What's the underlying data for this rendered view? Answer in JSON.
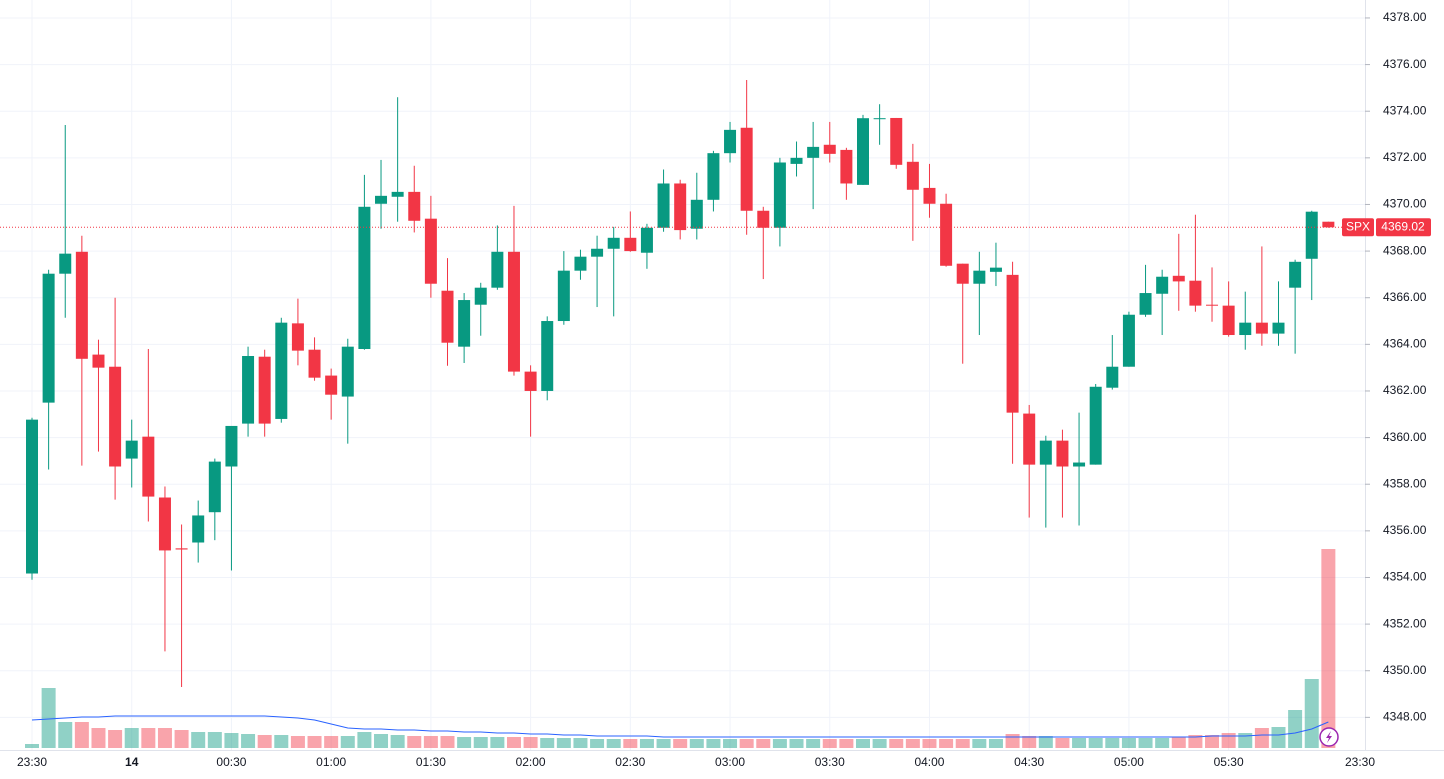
{
  "chart_data": {
    "type": "candlestick",
    "symbol": "SPX",
    "last_price": {
      "value": 4369.02,
      "label": "4369.02"
    },
    "categories": [
      "23:30",
      null,
      null,
      null,
      null,
      null,
      "14",
      null,
      null,
      null,
      null,
      null,
      "00:30",
      null,
      null,
      null,
      null,
      null,
      "01:00",
      null,
      null,
      null,
      null,
      null,
      "01:30",
      null,
      null,
      null,
      null,
      null,
      "02:00",
      null,
      null,
      null,
      null,
      null,
      "02:30",
      null,
      null,
      null,
      null,
      null,
      "03:00",
      null,
      null,
      null,
      null,
      null,
      "03:30",
      null,
      null,
      null,
      null,
      null,
      "04:00",
      null,
      null,
      null,
      null,
      null,
      "04:30",
      null,
      null,
      null,
      null,
      null,
      "05:00",
      null,
      null,
      null,
      null,
      null,
      "05:30",
      null,
      null,
      null,
      null,
      null,
      null
    ],
    "x_axis_end_label": "23:30",
    "open": [
      4354.17,
      4361.5,
      4367.03,
      4367.97,
      4363.56,
      4363.04,
      4359.1,
      4360.04,
      4357.43,
      4355.25,
      4355.5,
      4356.8,
      4358.76,
      4360.6,
      4363.47,
      4360.8,
      4364.9,
      4363.77,
      4362.66,
      4361.76,
      4363.8,
      4370.03,
      4370.33,
      4370.54,
      4369.39,
      4366.3,
      4363.9,
      4365.7,
      4366.43,
      4367.97,
      4362.83,
      4362.0,
      4365.0,
      4367.16,
      4367.76,
      4368.1,
      4368.57,
      4367.93,
      4369.0,
      4370.9,
      4368.96,
      4370.2,
      4372.2,
      4373.29,
      4369.73,
      4369.0,
      4371.74,
      4372.0,
      4372.56,
      4372.34,
      4370.84,
      4373.67,
      4373.71,
      4371.83,
      4370.71,
      4370.03,
      4367.46,
      4366.6,
      4367.11,
      4366.98,
      4361.03,
      4358.84,
      4359.87,
      4358.76,
      4358.84,
      4362.14,
      4363.04,
      4365.27,
      4366.17,
      4366.94,
      4366.73,
      4365.7,
      4365.66,
      4364.4,
      4364.93,
      4364.46,
      4366.43,
      4367.67,
      4369.26
    ],
    "high": [
      4360.85,
      4367.2,
      4373.41,
      4368.66,
      4364.2,
      4366.0,
      4360.77,
      4363.8,
      4357.9,
      4356.27,
      4357.3,
      4359.1,
      4360.5,
      4363.9,
      4363.77,
      4365.14,
      4365.96,
      4364.3,
      4362.96,
      4364.24,
      4371.27,
      4371.91,
      4374.6,
      4371.66,
      4370.37,
      4367.7,
      4366.2,
      4366.64,
      4369.1,
      4369.94,
      4363.1,
      4365.2,
      4368.0,
      4368.06,
      4368.66,
      4369.04,
      4369.7,
      4369.17,
      4371.5,
      4371.06,
      4371.36,
      4372.3,
      4373.54,
      4375.34,
      4369.9,
      4372.0,
      4372.7,
      4373.54,
      4373.54,
      4372.43,
      4373.84,
      4374.3,
      4373.71,
      4372.6,
      4371.74,
      4370.46,
      4367.46,
      4367.97,
      4368.36,
      4367.54,
      4361.4,
      4360.08,
      4360.34,
      4361.07,
      4362.3,
      4364.4,
      4365.4,
      4367.41,
      4367.2,
      4368.74,
      4369.56,
      4367.3,
      4366.7,
      4366.26,
      4368.2,
      4366.7,
      4367.63,
      4369.73,
      4369.26
    ],
    "low": [
      4353.9,
      4358.63,
      4365.14,
      4358.8,
      4359.4,
      4357.34,
      4357.86,
      4356.4,
      4350.83,
      4349.3,
      4354.64,
      4355.6,
      4354.3,
      4360.04,
      4360.04,
      4360.64,
      4363.1,
      4362.44,
      4360.77,
      4359.74,
      4363.77,
      4368.96,
      4369.26,
      4368.8,
      4366.0,
      4363.08,
      4363.2,
      4364.37,
      4366.34,
      4362.66,
      4360.04,
      4361.6,
      4364.84,
      4366.77,
      4365.6,
      4365.2,
      4367.97,
      4367.24,
      4368.83,
      4368.5,
      4368.5,
      4369.7,
      4371.8,
      4368.7,
      4366.8,
      4368.2,
      4371.2,
      4369.8,
      4371.8,
      4370.2,
      4370.84,
      4372.56,
      4371.53,
      4368.44,
      4369.43,
      4367.33,
      4363.17,
      4364.4,
      4366.5,
      4358.88,
      4356.57,
      4356.14,
      4356.57,
      4356.23,
      4358.84,
      4362.06,
      4363.04,
      4365.18,
      4364.4,
      4365.44,
      4365.4,
      4364.97,
      4364.33,
      4363.77,
      4363.94,
      4363.94,
      4363.6,
      4365.9,
      4369.0
    ],
    "close": [
      4360.77,
      4367.03,
      4367.89,
      4363.38,
      4363.0,
      4358.76,
      4359.87,
      4357.47,
      4355.16,
      4355.2,
      4356.66,
      4358.97,
      4360.5,
      4363.5,
      4360.6,
      4364.93,
      4363.73,
      4362.57,
      4361.84,
      4363.9,
      4369.9,
      4370.37,
      4370.54,
      4369.3,
      4366.6,
      4364.07,
      4365.9,
      4366.43,
      4367.97,
      4362.83,
      4362.0,
      4365.0,
      4367.16,
      4367.76,
      4368.1,
      4368.57,
      4368.0,
      4369.0,
      4370.9,
      4368.9,
      4370.2,
      4372.2,
      4373.2,
      4369.73,
      4369.0,
      4371.8,
      4372.0,
      4372.47,
      4372.17,
      4370.9,
      4373.7,
      4373.7,
      4371.7,
      4370.63,
      4370.03,
      4367.37,
      4366.6,
      4367.16,
      4367.29,
      4361.07,
      4358.84,
      4359.87,
      4358.76,
      4358.93,
      4362.18,
      4363.04,
      4365.27,
      4366.2,
      4366.9,
      4366.7,
      4365.66,
      4365.66,
      4364.4,
      4364.93,
      4364.46,
      4364.93,
      4367.54,
      4369.69,
      4369.02
    ],
    "volume": [
      4,
      60,
      26,
      26,
      20,
      18,
      20,
      20,
      20,
      18,
      16,
      16,
      15,
      14,
      13,
      13,
      12,
      12,
      12,
      12,
      16,
      14,
      13,
      12,
      12,
      12,
      11,
      11,
      11,
      11,
      11,
      10,
      10,
      10,
      9,
      9,
      9,
      9,
      9,
      9,
      9,
      9,
      9,
      9,
      9,
      9,
      9,
      9,
      9,
      9,
      9,
      9,
      9,
      9,
      9,
      9,
      9,
      9,
      9,
      14,
      12,
      12,
      10,
      10,
      10,
      10,
      10,
      10,
      10,
      11,
      13,
      13,
      15,
      15,
      20,
      21,
      38,
      69,
      199
    ],
    "volume_ma": [
      28,
      29,
      30,
      31,
      31,
      32,
      32,
      32,
      32,
      32,
      32,
      32,
      32,
      32,
      32,
      31,
      30,
      28,
      24,
      20,
      19,
      19,
      18,
      18,
      17,
      17,
      16,
      16,
      15,
      15,
      14,
      14,
      13,
      13,
      12,
      12,
      12,
      12,
      11,
      11,
      11,
      11,
      11,
      11,
      11,
      11,
      11,
      11,
      11,
      11,
      11,
      11,
      11,
      11,
      11,
      11,
      11,
      11,
      11,
      11,
      11,
      11,
      11,
      11,
      11,
      11,
      11,
      11,
      11,
      11,
      11,
      12,
      12,
      12,
      13,
      13,
      15,
      19,
      26
    ],
    "up_color": "#089981",
    "down_color": "#f23645",
    "ma_color": "#2962ff",
    "ylim": [
      4346.6,
      4378.77
    ],
    "yticks": [
      {
        "value": 4348,
        "label": "4348.00"
      },
      {
        "value": 4350,
        "label": "4350.00"
      },
      {
        "value": 4352,
        "label": "4352.00"
      },
      {
        "value": 4354,
        "label": "4354.00"
      },
      {
        "value": 4356,
        "label": "4356.00"
      },
      {
        "value": 4358,
        "label": "4358.00"
      },
      {
        "value": 4360,
        "label": "4360.00"
      },
      {
        "value": 4362,
        "label": "4362.00"
      },
      {
        "value": 4364,
        "label": "4364.00"
      },
      {
        "value": 4366,
        "label": "4366.00"
      },
      {
        "value": 4368,
        "label": "4368.00"
      },
      {
        "value": 4370,
        "label": "4370.00"
      },
      {
        "value": 4372,
        "label": "4372.00"
      },
      {
        "value": 4374,
        "label": "4374.00"
      },
      {
        "value": 4376,
        "label": "4376.00"
      },
      {
        "value": 4378,
        "label": "4378.00"
      }
    ],
    "grid": true
  }
}
